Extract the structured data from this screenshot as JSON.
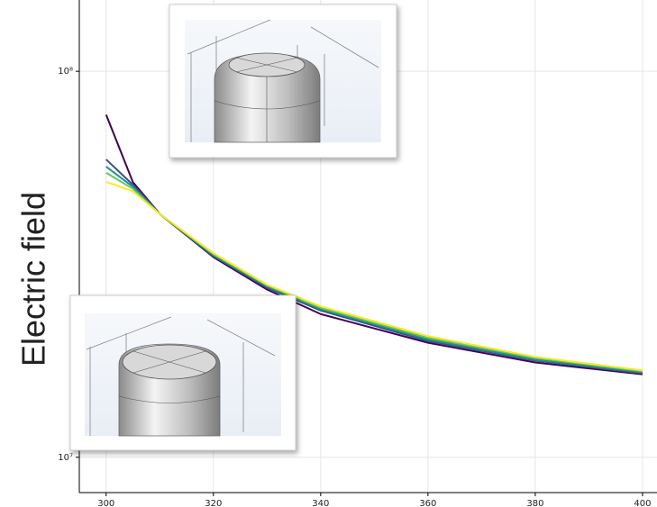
{
  "chart_data": {
    "type": "line",
    "ylabel": "Electric field",
    "log_y": true,
    "grid": true,
    "x": [
      300,
      305,
      310,
      320,
      330,
      340,
      360,
      380,
      400
    ],
    "series": [
      {
        "color": "#440154",
        "values": [
          77200000,
          51600000,
          42700000,
          33000000,
          27200000,
          23500000,
          19800000,
          17600000,
          16400000
        ]
      },
      {
        "color": "#3b528b",
        "values": [
          59100000,
          50800000,
          42700000,
          33200000,
          27500000,
          24000000,
          20000000,
          17800000,
          16500000
        ]
      },
      {
        "color": "#21918c",
        "values": [
          56600000,
          50200000,
          42700000,
          33400000,
          27700000,
          24200000,
          20200000,
          17900000,
          16600000
        ]
      },
      {
        "color": "#5ec962",
        "values": [
          54600000,
          49600000,
          42700000,
          33600000,
          27900000,
          24400000,
          20400000,
          18100000,
          16700000
        ]
      },
      {
        "color": "#fde725",
        "values": [
          51700000,
          48900000,
          42700000,
          33800000,
          28000000,
          24600000,
          20600000,
          18200000,
          16800000
        ]
      }
    ],
    "xlim": [
      295,
      402.7
    ],
    "xticks": [
      300,
      320,
      340,
      360,
      380,
      400
    ],
    "ylim": [
      8100000,
      153000000
    ],
    "yticks": [
      {
        "value": 10000000,
        "label": "10⁷"
      },
      {
        "value": 100000000,
        "label": "10⁸"
      }
    ]
  }
}
